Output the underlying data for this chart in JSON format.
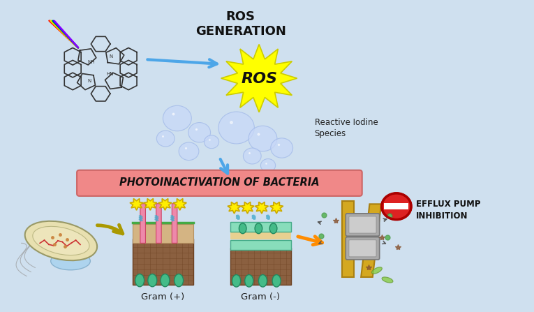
{
  "bg_color": "#cfe0ef",
  "ros_generation_text": "ROS\nGENERATION",
  "ros_text": "ROS",
  "reactive_iodine_text": "Reactive Iodine\nSpecies",
  "photoinactivation_text": "PHOTOINACTIVATION OF BACTERIA",
  "gram_plus_text": "Gram (+)",
  "gram_minus_text": "Gram (-)",
  "efflux_text": "EFFLUX PUMP\nINHIBITION",
  "ros_star_color": "#ffff00",
  "ros_star_edge": "#cccc00",
  "arrow_color": "#4da6e8",
  "orange_arrow_color": "#ff8c00",
  "bubble_color": "#c8d8f8",
  "bubble_edge": "#a0b8e8"
}
